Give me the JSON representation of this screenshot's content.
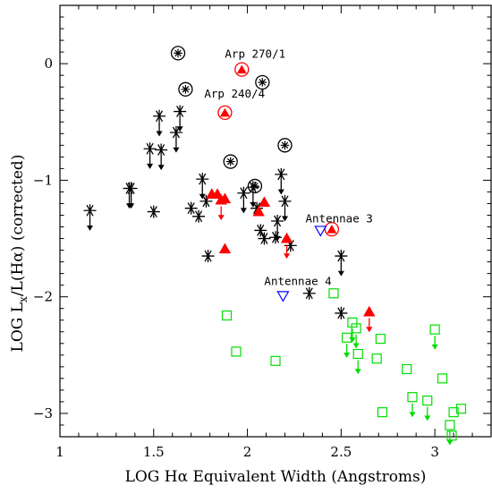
{
  "chart_data": {
    "type": "scatter",
    "xlabel": "LOG Hα Equivalent Width (Angstroms)",
    "ylabel_main": "LOG L",
    "ylabel_sub": "x",
    "ylabel_tail": "/L(Hα)  (corrected)",
    "xlim": [
      1.0,
      3.3
    ],
    "ylim": [
      -3.2,
      0.5
    ],
    "x_ticks": [
      1,
      1.5,
      2,
      2.5,
      3
    ],
    "x_tick_labels": [
      "1",
      "1.5",
      "2",
      "2.5",
      "3"
    ],
    "y_ticks": [
      0,
      -1,
      -2,
      -3
    ],
    "y_tick_labels": [
      "0",
      "−1",
      "−2",
      "−3"
    ],
    "grid": false,
    "annotations": [
      {
        "text": "Arp 270/1",
        "x": 1.88,
        "y": 0.05
      },
      {
        "text": "Arp 240/4",
        "x": 1.77,
        "y": -0.29
      },
      {
        "text": "Antennae 3",
        "x": 2.31,
        "y": -1.36
      },
      {
        "text": "Antennae 4",
        "x": 2.09,
        "y": -1.9
      }
    ],
    "series": [
      {
        "marker": "asterisk",
        "color": "#000000",
        "points": [
          {
            "x": 1.16,
            "y": -1.26,
            "upper_limit": true
          },
          {
            "x": 1.37,
            "y": -1.07,
            "upper_limit": true
          },
          {
            "x": 1.38,
            "y": -1.07,
            "upper_limit": true
          },
          {
            "x": 1.48,
            "y": -0.73,
            "upper_limit": true
          },
          {
            "x": 1.54,
            "y": -0.74,
            "upper_limit": true
          },
          {
            "x": 1.53,
            "y": -0.45,
            "upper_limit": true
          },
          {
            "x": 1.62,
            "y": -0.59,
            "upper_limit": true
          },
          {
            "x": 1.64,
            "y": -0.41,
            "upper_limit": true
          },
          {
            "x": 1.5,
            "y": -1.27
          },
          {
            "x": 1.7,
            "y": -1.24
          },
          {
            "x": 1.74,
            "y": -1.31
          },
          {
            "x": 1.76,
            "y": -0.99,
            "upper_limit": true
          },
          {
            "x": 1.79,
            "y": -1.65
          },
          {
            "x": 1.78,
            "y": -1.18
          },
          {
            "x": 1.98,
            "y": -1.11,
            "upper_limit": true
          },
          {
            "x": 2.03,
            "y": -1.06,
            "upper_limit": true
          },
          {
            "x": 2.05,
            "y": -1.24
          },
          {
            "x": 2.07,
            "y": -1.43
          },
          {
            "x": 2.09,
            "y": -1.5
          },
          {
            "x": 2.15,
            "y": -1.49
          },
          {
            "x": 2.16,
            "y": -1.35,
            "upper_limit": true
          },
          {
            "x": 2.18,
            "y": -0.95,
            "upper_limit": true
          },
          {
            "x": 2.2,
            "y": -1.18,
            "upper_limit": true
          },
          {
            "x": 2.23,
            "y": -1.56
          },
          {
            "x": 2.33,
            "y": -1.97
          },
          {
            "x": 2.5,
            "y": -1.65,
            "upper_limit": true
          },
          {
            "x": 2.5,
            "y": -2.14
          }
        ]
      },
      {
        "marker": "circled-asterisk",
        "color": "#000000",
        "points": [
          {
            "x": 1.63,
            "y": 0.09
          },
          {
            "x": 1.67,
            "y": -0.22
          },
          {
            "x": 1.91,
            "y": -0.84
          },
          {
            "x": 2.04,
            "y": -1.05
          },
          {
            "x": 2.08,
            "y": -0.16
          },
          {
            "x": 2.2,
            "y": -0.7
          }
        ]
      },
      {
        "marker": "filled-triangle",
        "color": "#ff0000",
        "points": [
          {
            "x": 1.81,
            "y": -1.12
          },
          {
            "x": 1.84,
            "y": -1.12
          },
          {
            "x": 1.86,
            "y": -1.17,
            "upper_limit": true
          },
          {
            "x": 1.88,
            "y": -1.16
          },
          {
            "x": 1.88,
            "y": -1.59
          },
          {
            "x": 2.06,
            "y": -1.27
          },
          {
            "x": 2.09,
            "y": -1.19
          },
          {
            "x": 2.21,
            "y": -1.5,
            "upper_limit": true
          },
          {
            "x": 2.65,
            "y": -2.13,
            "upper_limit": true
          }
        ]
      },
      {
        "marker": "circled-filled-triangle",
        "color": "#ff0000",
        "points": [
          {
            "x": 1.97,
            "y": -0.05
          },
          {
            "x": 1.88,
            "y": -0.42
          },
          {
            "x": 2.45,
            "y": -1.42
          }
        ]
      },
      {
        "marker": "open-triangle-down",
        "color": "#0000ff",
        "points": [
          {
            "x": 2.39,
            "y": -1.43
          },
          {
            "x": 2.19,
            "y": -1.99
          }
        ]
      },
      {
        "marker": "open-square",
        "color": "#00dd00",
        "points": [
          {
            "x": 1.89,
            "y": -2.16
          },
          {
            "x": 1.94,
            "y": -2.47
          },
          {
            "x": 2.15,
            "y": -2.55
          },
          {
            "x": 2.46,
            "y": -1.97
          },
          {
            "x": 2.53,
            "y": -2.35,
            "upper_limit": true
          },
          {
            "x": 2.56,
            "y": -2.22,
            "upper_limit": true
          },
          {
            "x": 2.58,
            "y": -2.27,
            "upper_limit": true
          },
          {
            "x": 2.59,
            "y": -2.49,
            "upper_limit": true
          },
          {
            "x": 2.69,
            "y": -2.53
          },
          {
            "x": 2.71,
            "y": -2.36
          },
          {
            "x": 2.72,
            "y": -2.99
          },
          {
            "x": 2.85,
            "y": -2.62
          },
          {
            "x": 2.88,
            "y": -2.86,
            "upper_limit": true
          },
          {
            "x": 2.96,
            "y": -2.89,
            "upper_limit": true
          },
          {
            "x": 3.0,
            "y": -2.28,
            "upper_limit": true
          },
          {
            "x": 3.04,
            "y": -2.7
          },
          {
            "x": 3.08,
            "y": -3.1,
            "upper_limit": true
          },
          {
            "x": 3.09,
            "y": -3.19
          },
          {
            "x": 3.1,
            "y": -2.99
          },
          {
            "x": 3.14,
            "y": -2.96
          }
        ]
      }
    ]
  }
}
